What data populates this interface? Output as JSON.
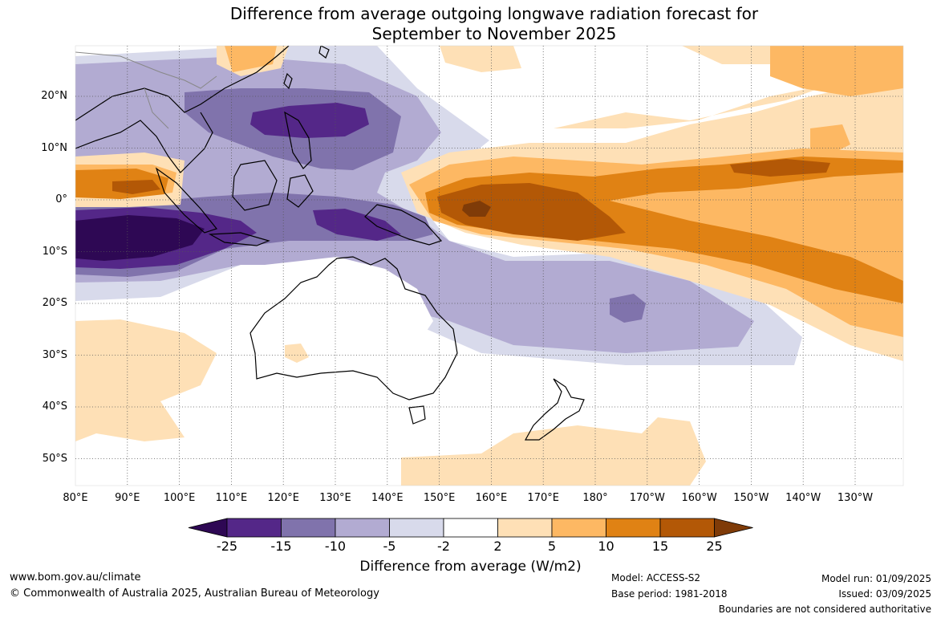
{
  "title": {
    "line1": "Difference from average outgoing longwave radiation forecast for",
    "line2": "September to November 2025"
  },
  "map": {
    "region": "Indo-Pacific",
    "lat_labels": [
      "20°N",
      "10°N",
      "0°",
      "10°S",
      "20°S",
      "30°S",
      "40°S",
      "50°S"
    ],
    "lon_labels": [
      "80°E",
      "90°E",
      "100°E",
      "110°E",
      "120°E",
      "130°E",
      "140°E",
      "150°E",
      "160°E",
      "170°E",
      "180°",
      "170°W",
      "160°W",
      "150°W",
      "140°W",
      "130°W"
    ],
    "gridlines": true
  },
  "legend": {
    "title": "Difference from average (W/m2)",
    "ticks": [
      "-25",
      "-15",
      "-10",
      "-5",
      "-2",
      "2",
      "5",
      "10",
      "15",
      "25"
    ],
    "colors": [
      "#2e0854",
      "#542788",
      "#8073ac",
      "#b2abd2",
      "#d8daeb",
      "#ffffff",
      "#fee0b6",
      "#fdb863",
      "#e08214",
      "#b35806",
      "#7f3b08"
    ]
  },
  "footer": {
    "website": "www.bom.gov.au/climate",
    "copyright": "© Commonwealth of Australia 2025, Australian Bureau of Meteorology",
    "model": "Model: ACCESS-S2",
    "base_period": "Base period: 1981-2018",
    "model_run": "Model run: 01/09/2025",
    "issued": "Issued: 03/09/2025",
    "disclaimer": "Boundaries are not considered authoritative"
  }
}
